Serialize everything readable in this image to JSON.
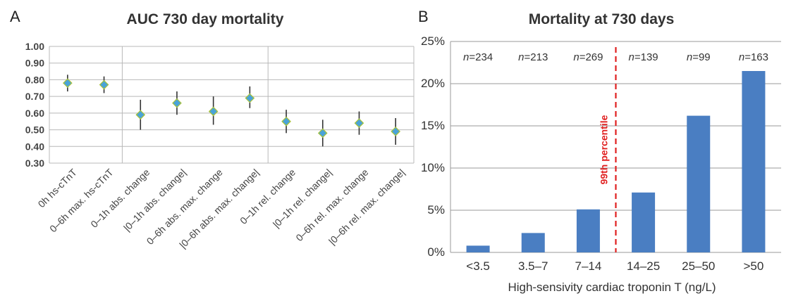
{
  "chart_data": [
    {
      "panel": "A",
      "type": "scatter",
      "title": "AUC 730 day mortality",
      "categories": [
        "0h hs-cTnT",
        "0–6h max. hs-cTnT",
        "0–1h abs. change",
        "|0–1h abs. change|",
        "0–6h abs. max. change",
        "|0–6h abs. max. change|",
        "0–1h rel. change",
        "|0–1h rel. change|",
        "0–6h rel. max. change",
        "|0–6h rel. max. change|"
      ],
      "values": [
        0.78,
        0.77,
        0.59,
        0.66,
        0.61,
        0.69,
        0.55,
        0.48,
        0.54,
        0.49
      ],
      "ci_low": [
        0.73,
        0.72,
        0.5,
        0.59,
        0.53,
        0.63,
        0.48,
        0.4,
        0.47,
        0.41
      ],
      "ci_high": [
        0.83,
        0.82,
        0.68,
        0.73,
        0.7,
        0.76,
        0.62,
        0.56,
        0.61,
        0.57
      ],
      "ylim": [
        0.3,
        1.0
      ],
      "yticks": [
        "0.30",
        "0.40",
        "0.50",
        "0.60",
        "0.70",
        "0.80",
        "0.90",
        "1.00"
      ],
      "group_separators_after": [
        2,
        6
      ],
      "grid": true
    },
    {
      "panel": "B",
      "type": "bar",
      "title": "Mortality at 730 days",
      "xlabel": "High-sensivity cardiac troponin T (ng/L)",
      "categories": [
        "<3.5",
        "3.5–7",
        "7–14",
        "14–25",
        "25–50",
        ">50"
      ],
      "values": [
        0.8,
        2.3,
        5.1,
        7.1,
        16.2,
        21.5
      ],
      "n_prefix": "n",
      "n_values": [
        "=234",
        "=213",
        "=269",
        "=139",
        "=99",
        "=163"
      ],
      "ylim": [
        0,
        25
      ],
      "yticks": [
        "0%",
        "5%",
        "10%",
        "15%",
        "20%",
        "25%"
      ],
      "threshold_label": "99th percentile",
      "bar_color": "#4a7ec2",
      "threshold_color": "#e02020",
      "grid": true
    }
  ]
}
